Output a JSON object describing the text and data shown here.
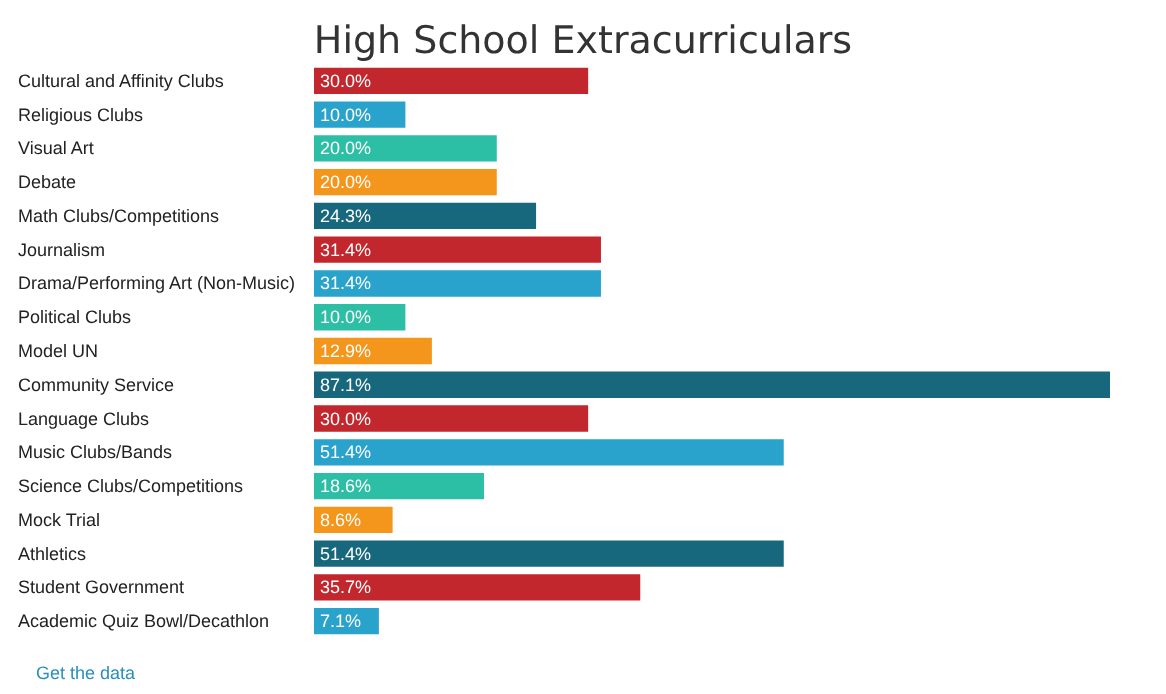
{
  "chart_data": {
    "type": "bar",
    "orientation": "horizontal",
    "title": "High School Extracurriculars",
    "categories": [
      "Cultural and Affinity Clubs",
      "Religious Clubs",
      "Visual Art",
      "Debate",
      "Math Clubs/Competitions",
      "Journalism",
      "Drama/Performing Art (Non-Music)",
      "Political Clubs",
      "Model UN",
      "Community Service",
      "Language Clubs",
      "Music Clubs/Bands",
      "Science Clubs/Competitions",
      "Mock Trial",
      "Athletics",
      "Student Government",
      "Academic Quiz Bowl/Decathlon"
    ],
    "values": [
      30.0,
      10.0,
      20.0,
      20.0,
      24.3,
      31.4,
      31.4,
      10.0,
      12.9,
      87.1,
      30.0,
      51.4,
      18.6,
      8.6,
      51.4,
      35.7,
      7.1
    ],
    "value_labels": [
      "30.0%",
      "10.0%",
      "20.0%",
      "20.0%",
      "24.3%",
      "31.4%",
      "31.4%",
      "10.0%",
      "12.9%",
      "87.1%",
      "30.0%",
      "51.4%",
      "18.6%",
      "8.6%",
      "51.4%",
      "35.7%",
      "7.1%"
    ],
    "colors": [
      "#c1272d",
      "#29a3cc",
      "#2dbfa5",
      "#f5961c",
      "#17677d",
      "#c1272d",
      "#29a3cc",
      "#2dbfa5",
      "#f5961c",
      "#17677d",
      "#c1272d",
      "#29a3cc",
      "#2dbfa5",
      "#f5961c",
      "#17677d",
      "#c1272d",
      "#29a3cc"
    ],
    "annotations": [
      "Get the data"
    ]
  }
}
